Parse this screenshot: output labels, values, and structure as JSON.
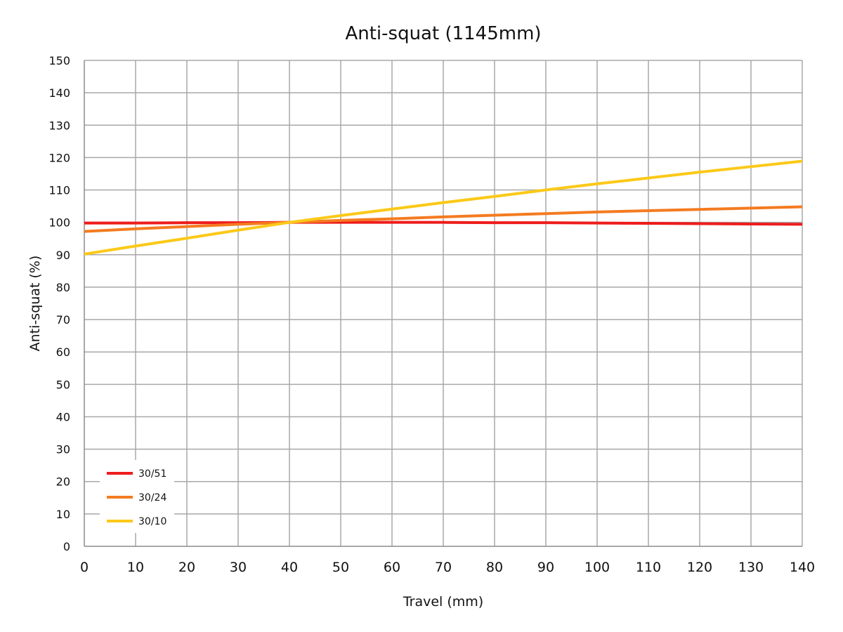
{
  "chart_data": {
    "type": "line",
    "title": "Anti-squat (1145mm)",
    "xlabel": "Travel (mm)",
    "ylabel": "Anti-squat (%)",
    "xlim": [
      0,
      140
    ],
    "ylim": [
      0,
      150
    ],
    "xticks": [
      0,
      10,
      20,
      30,
      40,
      50,
      60,
      70,
      80,
      90,
      100,
      110,
      120,
      130,
      140
    ],
    "yticks": [
      0,
      10,
      20,
      30,
      40,
      50,
      60,
      70,
      80,
      90,
      100,
      110,
      120,
      130,
      140,
      150
    ],
    "grid": true,
    "legend_position": "bottom-left",
    "series": [
      {
        "name": "30/51",
        "color": "#ee1c1c",
        "x": [
          0,
          10,
          20,
          30,
          40,
          50,
          60,
          70,
          80,
          90,
          100,
          110,
          120,
          130,
          140
        ],
        "values": [
          99.8,
          99.8,
          99.9,
          99.9,
          100,
          100,
          100,
          100,
          99.9,
          99.9,
          99.8,
          99.7,
          99.6,
          99.5,
          99.4
        ]
      },
      {
        "name": "30/24",
        "color": "#f47b20",
        "x": [
          0,
          10,
          20,
          30,
          40,
          50,
          60,
          70,
          80,
          90,
          100,
          110,
          120,
          130,
          140
        ],
        "values": [
          97.2,
          98,
          98.7,
          99.4,
          100,
          100.6,
          101.1,
          101.7,
          102.2,
          102.7,
          103.2,
          103.6,
          104.0,
          104.4,
          104.8
        ]
      },
      {
        "name": "30/10",
        "color": "#fbc918",
        "x": [
          0,
          10,
          20,
          30,
          40,
          50,
          60,
          70,
          80,
          90,
          100,
          110,
          120,
          130,
          140
        ],
        "values": [
          90.2,
          92.7,
          95.1,
          97.6,
          100,
          102.1,
          104.1,
          106.1,
          108.0,
          110.0,
          111.9,
          113.7,
          115.5,
          117.2,
          118.9
        ]
      }
    ]
  }
}
